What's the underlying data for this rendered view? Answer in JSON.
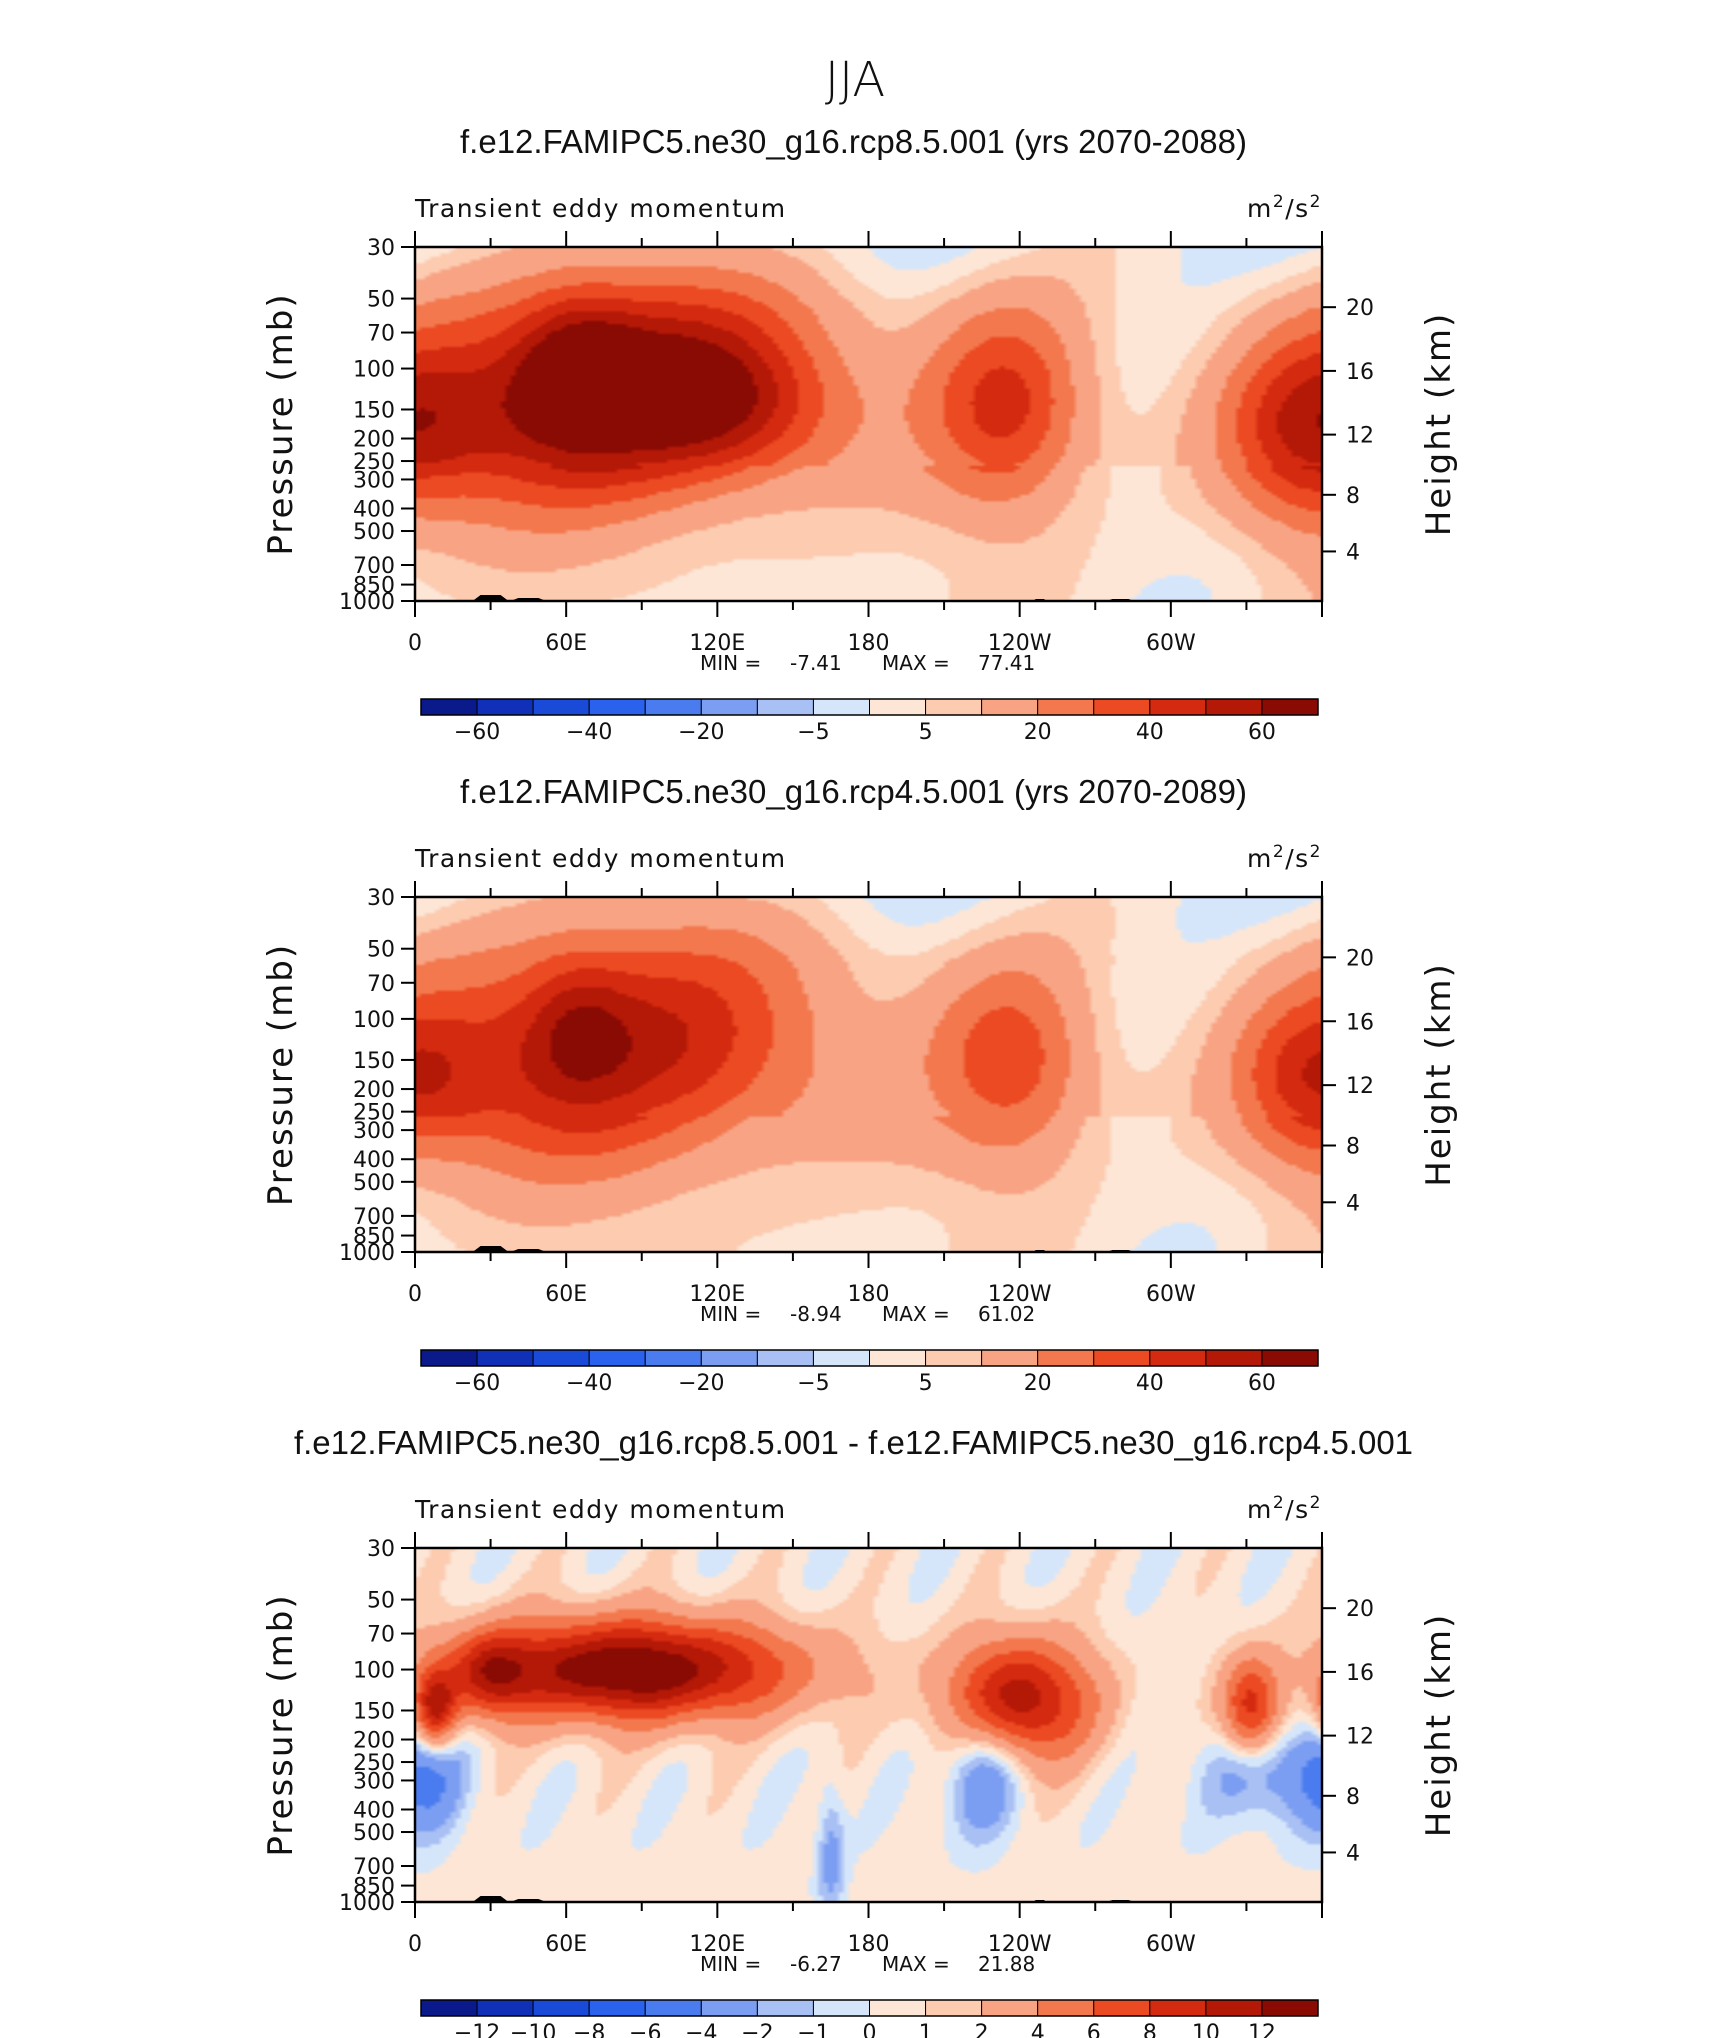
{
  "super_title": "JJA",
  "chart_data": [
    {
      "type": "heatmap",
      "title": "f.e12.FAMIPC5.ne30_g16.rcp8.5.001 (yrs 2070-2088)",
      "left_label": "Transient eddy momentum",
      "units_base": "m",
      "units_sep": "/s",
      "units_exp": "2",
      "ylabel": "Pressure (mb)",
      "ylabel_right": "Height (km)",
      "x_ticks": [
        "0",
        "60E",
        "120E",
        "180",
        "120W",
        "60W"
      ],
      "y_ticks": [
        "30",
        "50",
        "70",
        "100",
        "150",
        "200",
        "250",
        "300",
        "400",
        "500",
        "700",
        "850",
        "1000"
      ],
      "y_right_ticks": [
        "20",
        "16",
        "12",
        "8",
        "4"
      ],
      "min_label": "MIN =",
      "min_value": "-7.41",
      "max_label": "MAX =",
      "max_value": "77.41",
      "min": -7.41,
      "max": 77.41,
      "levels": [
        -70,
        -60,
        -50,
        -40,
        -30,
        -20,
        -10,
        -5,
        0,
        5,
        10,
        20,
        30,
        40,
        50,
        60,
        70
      ],
      "colorbar_labels": [
        "−60",
        "−40",
        "−20",
        "−5",
        "5",
        "20",
        "40",
        "60"
      ],
      "features": [
        {
          "lon": 95,
          "p": 115,
          "amp": 58,
          "dlon": 48,
          "dz": 0.22
        },
        {
          "lon": 65,
          "p": 100,
          "amp": 28,
          "dlon": 16,
          "dz": 0.14
        },
        {
          "lon": 120,
          "p": 150,
          "amp": 22,
          "dlon": 30,
          "dz": 0.13
        },
        {
          "lon": 25,
          "p": 170,
          "amp": 28,
          "dlon": 35,
          "dz": 0.2
        },
        {
          "lon": 235,
          "p": 150,
          "amp": 40,
          "dlon": 22,
          "dz": 0.2
        },
        {
          "lon": 352,
          "p": 190,
          "amp": 32,
          "dlon": 22,
          "dz": 0.18
        }
      ]
    },
    {
      "type": "heatmap",
      "title": "f.e12.FAMIPC5.ne30_g16.rcp4.5.001 (yrs 2070-2089)",
      "left_label": "Transient eddy momentum",
      "units_base": "m",
      "units_sep": "/s",
      "units_exp": "2",
      "ylabel": "Pressure (mb)",
      "ylabel_right": "Height (km)",
      "x_ticks": [
        "0",
        "60E",
        "120E",
        "180",
        "120W",
        "60W"
      ],
      "y_ticks": [
        "30",
        "50",
        "70",
        "100",
        "150",
        "200",
        "250",
        "300",
        "400",
        "500",
        "700",
        "850",
        "1000"
      ],
      "y_right_ticks": [
        "20",
        "16",
        "12",
        "8",
        "4"
      ],
      "min_label": "MIN =",
      "min_value": "-8.94",
      "max_label": "MAX =",
      "max_value": "61.02",
      "min": -8.94,
      "max": 61.02,
      "levels": [
        -70,
        -60,
        -50,
        -40,
        -30,
        -20,
        -10,
        -5,
        0,
        5,
        10,
        20,
        30,
        40,
        50,
        60,
        70
      ],
      "colorbar_labels": [
        "−60",
        "−40",
        "−20",
        "−5",
        "5",
        "20",
        "40",
        "60"
      ],
      "features": [
        {
          "lon": 95,
          "p": 125,
          "amp": 45,
          "dlon": 50,
          "dz": 0.24
        },
        {
          "lon": 65,
          "p": 105,
          "amp": 18,
          "dlon": 14,
          "dz": 0.14
        },
        {
          "lon": 25,
          "p": 170,
          "amp": 22,
          "dlon": 35,
          "dz": 0.2
        },
        {
          "lon": 237,
          "p": 160,
          "amp": 33,
          "dlon": 22,
          "dz": 0.2
        },
        {
          "lon": 355,
          "p": 190,
          "amp": 28,
          "dlon": 20,
          "dz": 0.16
        }
      ]
    },
    {
      "type": "heatmap",
      "title": "f.e12.FAMIPC5.ne30_g16.rcp8.5.001 - f.e12.FAMIPC5.ne30_g16.rcp4.5.001",
      "left_label": "Transient eddy momentum",
      "units_base": "m",
      "units_sep": "/s",
      "units_exp": "2",
      "ylabel": "Pressure (mb)",
      "ylabel_right": "Height (km)",
      "x_ticks": [
        "0",
        "60E",
        "120E",
        "180",
        "120W",
        "60W"
      ],
      "y_ticks": [
        "30",
        "50",
        "70",
        "100",
        "150",
        "200",
        "250",
        "300",
        "400",
        "500",
        "700",
        "850",
        "1000"
      ],
      "y_right_ticks": [
        "20",
        "16",
        "12",
        "8",
        "4"
      ],
      "min_label": "MIN =",
      "min_value": "-6.27",
      "max_label": "MAX =",
      "max_value": "21.88",
      "min": -6.27,
      "max": 21.88,
      "levels": [
        -14,
        -12,
        -10,
        -8,
        -6,
        -4,
        -2,
        -1,
        0,
        1,
        2,
        4,
        6,
        8,
        10,
        12,
        14
      ],
      "colorbar_labels": [
        "−12",
        "−10",
        "−8",
        "−6",
        "−4",
        "−2",
        "−1",
        "0",
        "1",
        "2",
        "4",
        "6",
        "8",
        "10",
        "12"
      ],
      "features": [
        {
          "lon": 85,
          "p": 100,
          "amp": 14,
          "dlon": 45,
          "dz": 0.1
        },
        {
          "lon": 30,
          "p": 105,
          "amp": 6,
          "dlon": 10,
          "dz": 0.08
        },
        {
          "lon": 240,
          "p": 135,
          "amp": 11,
          "dlon": 20,
          "dz": 0.12
        },
        {
          "lon": 8,
          "p": 150,
          "amp": 10,
          "dlon": 6,
          "dz": 0.08
        },
        {
          "lon": 332,
          "p": 150,
          "amp": 9,
          "dlon": 8,
          "dz": 0.1
        },
        {
          "lon": 5,
          "p": 280,
          "amp": -4,
          "dlon": 10,
          "dz": 0.12
        },
        {
          "lon": 225,
          "p": 270,
          "amp": -5,
          "dlon": 10,
          "dz": 0.12
        },
        {
          "lon": 340,
          "p": 270,
          "amp": -4,
          "dlon": 18,
          "dz": 0.1
        },
        {
          "lon": 165,
          "p": 650,
          "amp": -3,
          "dlon": 4,
          "dz": 0.15
        }
      ]
    }
  ]
}
